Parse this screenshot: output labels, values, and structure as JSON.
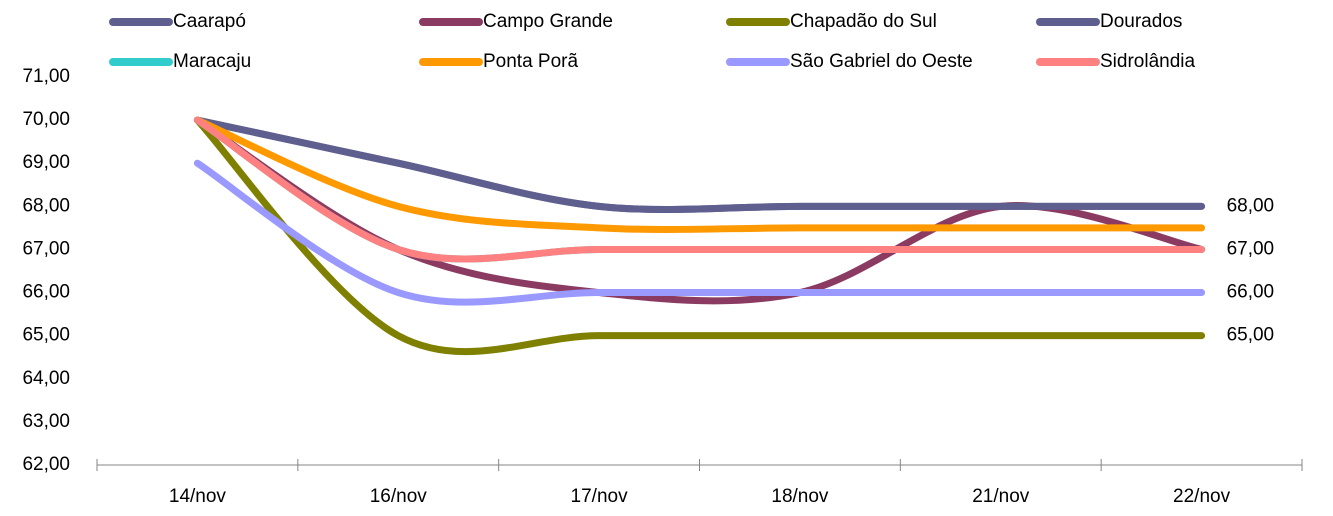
{
  "chart_data": {
    "type": "line",
    "categories": [
      "14/nov",
      "16/nov",
      "17/nov",
      "18/nov",
      "21/nov",
      "22/nov"
    ],
    "series": [
      {
        "name": "Caarapó",
        "color": "#5f5f8f",
        "values": [
          70,
          69,
          68,
          68,
          68,
          68
        ]
      },
      {
        "name": "Campo Grande",
        "color": "#8b3a62",
        "values": [
          70,
          67,
          66,
          66,
          68,
          67
        ]
      },
      {
        "name": "Chapadão do Sul",
        "color": "#7f7f00",
        "values": [
          70,
          65,
          65,
          65,
          65,
          65
        ],
        "value_labels": [
          null,
          null,
          null,
          null,
          null,
          "65,00"
        ]
      },
      {
        "name": "Dourados",
        "color": "#5f5f8f",
        "values": [
          70,
          69,
          68,
          68,
          68,
          68
        ],
        "value_labels": [
          null,
          null,
          null,
          null,
          null,
          "68,00"
        ]
      },
      {
        "name": "Maracaju",
        "color": "#33cccc",
        "values": [
          70,
          67,
          67,
          67,
          67,
          67
        ]
      },
      {
        "name": "Ponta Porã",
        "color": "#ff9900",
        "values": [
          70,
          68,
          67.5,
          67.5,
          67.5,
          67.5
        ]
      },
      {
        "name": "São Gabriel do Oeste",
        "color": "#9999ff",
        "values": [
          69,
          66,
          66,
          66,
          66,
          66
        ],
        "value_labels": [
          null,
          null,
          null,
          null,
          null,
          "66,00"
        ]
      },
      {
        "name": "Sidrolândia",
        "color": "#ff8080",
        "values": [
          70,
          67,
          67,
          67,
          67,
          67
        ],
        "value_labels": [
          null,
          null,
          null,
          null,
          null,
          "67,00"
        ]
      }
    ],
    "ylim": [
      62,
      71
    ],
    "yticks": [
      {
        "value": 62,
        "label": "62,00"
      },
      {
        "value": 63,
        "label": "63,00"
      },
      {
        "value": 64,
        "label": "64,00"
      },
      {
        "value": 65,
        "label": "65,00"
      },
      {
        "value": 66,
        "label": "66,00"
      },
      {
        "value": 67,
        "label": "67,00"
      },
      {
        "value": 68,
        "label": "68,00"
      },
      {
        "value": 69,
        "label": "69,00"
      },
      {
        "value": 70,
        "label": "70,00"
      },
      {
        "value": 71,
        "label": "71,00"
      }
    ],
    "grid": false,
    "legend": "top",
    "smooth": true
  }
}
